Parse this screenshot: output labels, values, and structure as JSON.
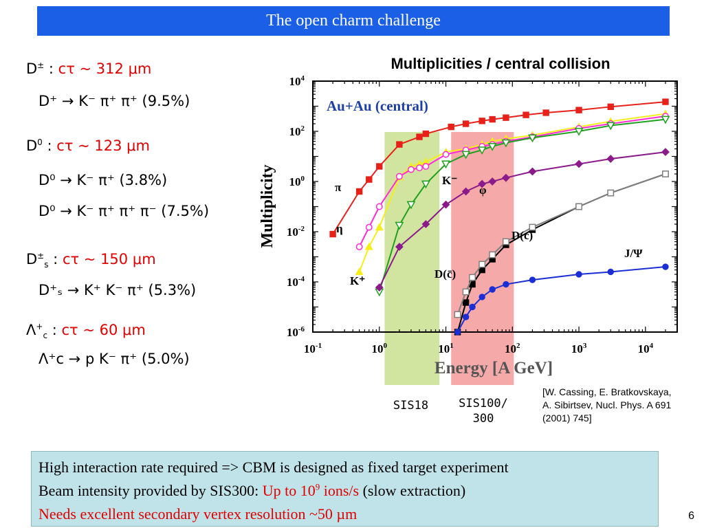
{
  "slide": {
    "title": "The open charm challenge",
    "page_number": "6",
    "citation": "[W. Cassing, E. Bratkovskaya, A. Sibirtsev, Nucl. Phys. A 691 (2001) 745]",
    "sis18_label": "SIS18",
    "sis100_label_line1": "SIS100/",
    "sis100_label_line2": "300",
    "bottom_line1": "High interaction rate required => CBM is designed as fixed target experiment",
    "bottom_line2_prefix": "Beam intensity provided by SIS300: ",
    "bottom_line2_red_a": "Up to 10",
    "bottom_line2_red_sup": "9",
    "bottom_line2_red_b": " ions/s",
    "bottom_line2_suffix": " (slow extraction)",
    "bottom_line3": "Needs excellent secondary vertex resolution ~50 µm",
    "colors": {
      "title_bar": "#1a5fe6",
      "highlight_red": "#e00000",
      "box_bg": "#bfe3e8",
      "sis18_band": "#c9df8f",
      "sis100_band": "#f59a9a"
    }
  },
  "decays": {
    "dpm": {
      "name": "D",
      "sup": "±",
      "sep": " : ",
      "ctau": "cτ ~ 312 μm"
    },
    "dpm_mode": {
      "text": "D⁺ → K⁻ π⁺ π⁺ (9.5%)"
    },
    "d0": {
      "name": "D",
      "sup": "0",
      "sep": " : ",
      "ctau": "cτ ~ 123 μm"
    },
    "d0_mode1": {
      "text": "D⁰ → K⁻ π⁺ (3.8%)"
    },
    "d0_mode2": {
      "text": "D⁰ → K⁻ π⁺ π⁺ π⁻ (7.5%)"
    },
    "ds": {
      "name": "D",
      "sup": "±",
      "sub": "s",
      "sep": " : ",
      "ctau": "cτ ~ 150 μm"
    },
    "ds_mode": {
      "text": "D⁺ₛ → K⁺ K⁻ π⁺  (5.3%)"
    },
    "lc": {
      "name": "Λ",
      "sup": "+",
      "sub": "c",
      "sep": " : ",
      "ctau": "cτ ~ 60 μm"
    },
    "lc_mode": {
      "text": "Λ⁺c → p K⁻ π⁺  (5.0%)"
    }
  },
  "chart_data": {
    "type": "line",
    "title": "Multiplicities / central collision",
    "subtitle": "Au+Au (central)",
    "subtitle_color": "#1f3fa8",
    "xlabel": "Energy [A GeV]",
    "ylabel": "Multiplicity",
    "xscale": "log",
    "yscale": "log",
    "xlim": [
      0.1,
      30000
    ],
    "ylim": [
      1e-06,
      10000
    ],
    "x_ticks": [
      {
        "v": 0.1,
        "base": "10",
        "exp": "-1"
      },
      {
        "v": 1,
        "base": "10",
        "exp": "0"
      },
      {
        "v": 10,
        "base": "10",
        "exp": "1"
      },
      {
        "v": 100,
        "base": "10",
        "exp": "2"
      },
      {
        "v": 1000,
        "base": "10",
        "exp": "3"
      },
      {
        "v": 10000,
        "base": "10",
        "exp": "4"
      }
    ],
    "y_ticks": [
      {
        "v": 1e-06,
        "base": "10",
        "exp": "-6"
      },
      {
        "v": 0.0001,
        "base": "10",
        "exp": "-4"
      },
      {
        "v": 0.01,
        "base": "10",
        "exp": "-2"
      },
      {
        "v": 1,
        "base": "10",
        "exp": "0"
      },
      {
        "v": 100,
        "base": "10",
        "exp": "2"
      },
      {
        "v": 10000,
        "base": "10",
        "exp": "4"
      }
    ],
    "bands": [
      {
        "name": "SIS18",
        "x0": 1.2,
        "x1": 8,
        "color": "#c9df8f"
      },
      {
        "name": "SIS100/300",
        "x0": 12,
        "x1": 105,
        "color": "#f59a9a"
      }
    ],
    "series": [
      {
        "name": "π",
        "color": "#e8201a",
        "marker": "square",
        "x": [
          0.2,
          0.5,
          0.7,
          1,
          2,
          4,
          5,
          12,
          20,
          35,
          50,
          80,
          160,
          320,
          1000,
          3000,
          20000
        ],
        "y": [
          0.008,
          0.4,
          1.2,
          4,
          30,
          60,
          80,
          150,
          200,
          260,
          300,
          350,
          450,
          550,
          700,
          950,
          1500
        ]
      },
      {
        "name": "K⁺",
        "color": "#f5ee1a",
        "marker": "triangle",
        "x": [
          0.5,
          0.7,
          1,
          2,
          3,
          4,
          5,
          10,
          20,
          35,
          50,
          80,
          200,
          1000,
          3000,
          20000
        ],
        "y": [
          0.00025,
          0.0025,
          0.015,
          1.5,
          4,
          5,
          6,
          15,
          20,
          30,
          40,
          50,
          70,
          150,
          250,
          500
        ]
      },
      {
        "name": "η",
        "color": "#ff2ad6",
        "marker": "circle-open",
        "x": [
          0.5,
          0.7,
          1,
          2,
          3,
          4,
          5,
          10,
          20,
          35,
          50,
          80,
          200,
          1000,
          3000,
          20000
        ],
        "y": [
          0.0025,
          0.015,
          0.1,
          1.6,
          3,
          3.5,
          4,
          12,
          18,
          25,
          30,
          40,
          60,
          130,
          200,
          400
        ]
      },
      {
        "name": "K⁻",
        "color": "#1fa01f",
        "marker": "triangle-down-open",
        "x": [
          1,
          2,
          3,
          5,
          10,
          20,
          35,
          50,
          80,
          200,
          1000,
          3000,
          20000
        ],
        "y": [
          4e-05,
          0.018,
          0.12,
          0.8,
          5,
          12,
          18,
          25,
          35,
          55,
          100,
          170,
          300
        ]
      },
      {
        "name": "φ",
        "color": "#8b1a8b",
        "marker": "diamond",
        "x": [
          1,
          2,
          5,
          10,
          20,
          35,
          50,
          80,
          200,
          1000,
          3000,
          20000
        ],
        "y": [
          6e-05,
          0.0025,
          0.02,
          0.12,
          0.4,
          0.8,
          1,
          1.4,
          2.5,
          5,
          8,
          15
        ]
      },
      {
        "name": "D(c)",
        "color": "#000000",
        "marker": "square",
        "x": [
          15,
          20,
          25,
          35,
          50,
          80,
          200,
          1000,
          3000,
          20000
        ],
        "y": [
          1e-06,
          1.5e-05,
          8e-05,
          0.0003,
          0.0008,
          0.003,
          0.012,
          0.1,
          0.35,
          2
        ]
      },
      {
        "name": "D(c̄)",
        "color": "#7f7f7f",
        "marker": "square-open",
        "x": [
          15,
          20,
          25,
          35,
          50,
          80,
          200,
          1000,
          3000,
          20000
        ],
        "y": [
          5e-06,
          4e-05,
          0.00015,
          0.0005,
          0.0012,
          0.004,
          0.015,
          0.1,
          0.35,
          2
        ]
      },
      {
        "name": "J/Ψ",
        "color": "#1a2ed4",
        "marker": "circle",
        "x": [
          15,
          20,
          25,
          35,
          50,
          80,
          200,
          1000,
          3000,
          20000
        ],
        "y": [
          1e-06,
          4e-06,
          1e-05,
          2.5e-05,
          5e-05,
          8e-05,
          0.00012,
          0.0002,
          0.00025,
          0.0004
        ]
      }
    ]
  }
}
